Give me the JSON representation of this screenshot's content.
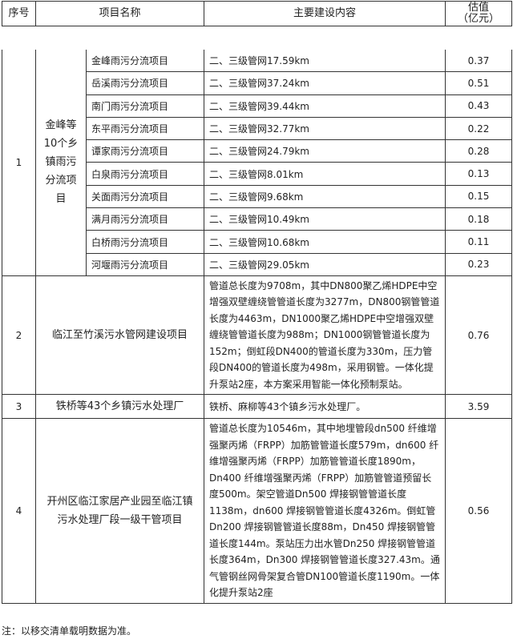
{
  "header": {
    "seq": "序号",
    "name": "项目名称",
    "content": "主要建设内容",
    "value_line1": "估值",
    "value_line2": "（亿元）"
  },
  "rows": [
    {
      "seq": "1",
      "group_name": "金峰等10个乡镇雨污分流项目",
      "subprojects": [
        {
          "name": "金峰雨污分流项目",
          "content": "二、三级管网17.59km",
          "value": "0.37"
        },
        {
          "name": "岳溪雨污分流项目",
          "content": "二、三级管网37.24km",
          "value": "0.51"
        },
        {
          "name": "南门雨污分流项目",
          "content": "二、三级管网39.44km",
          "value": "0.43"
        },
        {
          "name": "东平雨污分流项目",
          "content": "二、三级管网32.77km",
          "value": "0.22"
        },
        {
          "name": "谭家雨污分流项目",
          "content": "二、三级管网24.79km",
          "value": "0.28"
        },
        {
          "name": "白泉雨污分流项目",
          "content": "二、三级管网8.01km",
          "value": "0.13"
        },
        {
          "name": "关面雨污分流项目",
          "content": "二、三级管网9.68km",
          "value": "0.15"
        },
        {
          "name": "满月雨污分流项目",
          "content": "二、三级管网10.49km",
          "value": "0.18"
        },
        {
          "name": "白桥雨污分流项目",
          "content": "二、三级管网10.68km",
          "value": "0.11"
        },
        {
          "name": "河堰雨污分流项目",
          "content": "二、三级管网29.05km",
          "value": "0.23"
        }
      ]
    },
    {
      "seq": "2",
      "name": "临江至竹溪污水管网建设项目",
      "content": "管道总长度为9708m，其中DN800聚乙烯HDPE中空增强双壁缠绕管管道长度为3277m，DN800钢管管道长度为4463m，DN1000聚乙烯HDPE中空增强双壁缠绕管管道长度为988m；DN1000钢管管道长度为152m；倒虹段DN400的管道长度为330m，压力管段DN400的管道长度为498m，采用钢管。一体化提升泵站2座，本方案采用智能一体化预制泵站。",
      "value": "0.76"
    },
    {
      "seq": "3",
      "name": "铁桥等43个乡镇污水处理厂",
      "content": "铁桥、麻柳等43个镇乡污水处理厂。",
      "value": "3.59"
    },
    {
      "seq": "4",
      "name": "开州区临江家居产业园至临江镇污水处理厂段一级干管项目",
      "content": "管道总长度为10546m，其中地埋管段dn500 纤维增强聚丙烯（FRPP）加筋管管道长度579m，dn600 纤维增强聚丙烯（FRPP）加筋管管道长度1890m，Dn400 纤维增强聚丙烯（FRPP）加筋管管道预留长度500m。架空管道Dn500 焊接钢管管道长度1138m，dn600 焊接钢管管道长度4326m。倒虹管Dn200 焊接钢管管道长度88m，Dn450 焊接钢管管道长度144m。泵站压力出水管Dn250 焊接钢管管道长度364m，Dn300 焊接钢管管道长度327.43m。通气管钢丝网骨架复合管DN100管道长度1190m。一体化提升泵站2座",
      "value": "0.56"
    }
  ],
  "note": "注：以移交清单载明数据为准。"
}
